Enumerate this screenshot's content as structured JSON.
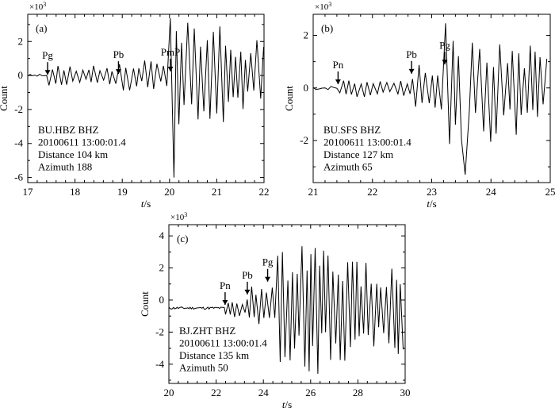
{
  "chart_data": [
    {
      "type": "line",
      "panel_label": "(a)",
      "xlabel": "t/s",
      "xlabel_italic": "t",
      "xlabel_unit": "/s",
      "ylabel": "Count",
      "multiplier": "×10",
      "multiplier_exp": "3",
      "xlim": [
        17,
        22
      ],
      "ylim": [
        -6.3,
        3.6
      ],
      "xticks": [
        17,
        18,
        19,
        20,
        21,
        22
      ],
      "yticks": [
        -6,
        -4,
        -2,
        0,
        2
      ],
      "info": [
        "BU.HBZ BHZ",
        "20100611 13:00:01.4",
        "Distance 104 km",
        "Azimuth 188"
      ],
      "phases": [
        {
          "name": "Pg",
          "t": 17.42,
          "y": -0.1
        },
        {
          "name": "Pb",
          "t": 18.92,
          "y": -0.05
        },
        {
          "name": "PmP",
          "t": 20.02,
          "y": 0.1
        }
      ],
      "series": [
        {
          "noise_end": 17.45,
          "pre_amp": 0.6,
          "mid_amp": 0.9,
          "main_start": 20.0,
          "main_amp": 3.6,
          "min_peak": -6.0,
          "min_t": 20.1,
          "period": 0.13,
          "seed": 3
        }
      ]
    },
    {
      "type": "line",
      "panel_label": "(b)",
      "xlabel": "t/s",
      "xlabel_italic": "t",
      "xlabel_unit": "/s",
      "ylabel": "Count",
      "multiplier": "×10",
      "multiplier_exp": "3",
      "xlim": [
        21,
        25
      ],
      "ylim": [
        -3.6,
        2.8
      ],
      "xticks": [
        21,
        22,
        23,
        24,
        25
      ],
      "yticks": [
        -2,
        0,
        2
      ],
      "info": [
        "BU.SFS BHZ",
        "20100611 13:00:01.4",
        "Distance 127 km",
        "Azimuth 65"
      ],
      "phases": [
        {
          "name": "Pn",
          "t": 21.42,
          "y": 0.05
        },
        {
          "name": "Pb",
          "t": 22.66,
          "y": 0.45
        },
        {
          "name": "Pg",
          "t": 23.22,
          "y": 0.8
        }
      ],
      "series": [
        {
          "noise_end": 21.45,
          "pre_amp": 0.35,
          "mid_amp": 0.9,
          "main_start": 23.2,
          "main_amp": 2.6,
          "min_peak": -3.3,
          "min_t": 23.55,
          "period": 0.11,
          "seed": 7
        }
      ]
    },
    {
      "type": "line",
      "panel_label": "(c)",
      "xlabel": "t/s",
      "xlabel_italic": "t",
      "xlabel_unit": "/s",
      "ylabel": "Count",
      "multiplier": "×10",
      "multiplier_exp": "3",
      "xlim": [
        20,
        30
      ],
      "ylim": [
        -5.2,
        4.7
      ],
      "xticks": [
        20,
        22,
        24,
        26,
        28,
        30
      ],
      "yticks": [
        -4,
        -2,
        0,
        2,
        4
      ],
      "info": [
        "BJ.ZHT BHZ",
        "20100611 13:00:01.4",
        "Distance 135 km",
        "Azimuth 50"
      ],
      "phases": [
        {
          "name": "Pn",
          "t": 22.38,
          "y": -0.45
        },
        {
          "name": "Pb",
          "t": 23.32,
          "y": 0.2
        },
        {
          "name": "Pg",
          "t": 24.18,
          "y": 1.0
        }
      ],
      "series": [
        {
          "noise_end": 22.4,
          "pre_amp": 0.6,
          "mid_amp": 1.5,
          "main_start": 24.5,
          "main_amp": 4.4,
          "min_peak": -4.6,
          "min_t": 26.3,
          "period": 0.2,
          "seed": 11,
          "baseline": -0.5
        }
      ]
    }
  ]
}
